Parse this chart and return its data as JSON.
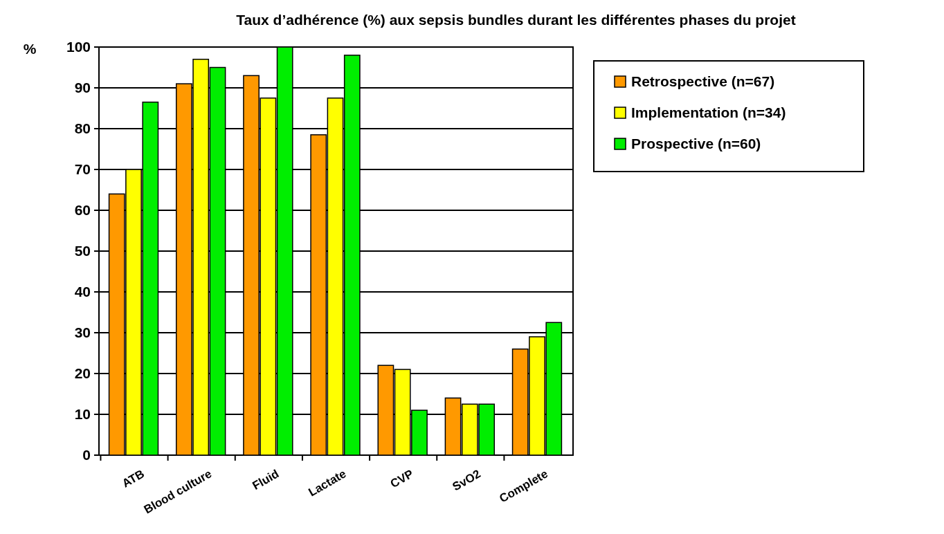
{
  "chart_data": {
    "type": "bar",
    "title": "Taux d’adhérence (%) aux sepsis bundles durant les différentes phases du projet",
    "ylabel": "%",
    "categories": [
      "ATB",
      "Blood culture",
      "Fluid",
      "Lactate",
      "CVP",
      "SvO2",
      "Complete"
    ],
    "series": [
      {
        "name": "Retrospective (n=67)",
        "color": "#ff9900",
        "values": [
          64,
          91,
          93,
          78.5,
          22,
          14,
          26
        ]
      },
      {
        "name": "Implementation (n=34)",
        "color": "#ffff00",
        "values": [
          70,
          97,
          87.5,
          87.5,
          21,
          12.5,
          29
        ]
      },
      {
        "name": "Prospective (n=60)",
        "color": "#00ee00",
        "values": [
          86.5,
          95,
          100,
          98,
          11,
          12.5,
          32.5
        ]
      }
    ],
    "ylim": [
      0,
      100
    ],
    "yticks": [
      0,
      10,
      20,
      30,
      40,
      50,
      60,
      70,
      80,
      90,
      100
    ],
    "grid": "y",
    "legend": "right"
  }
}
